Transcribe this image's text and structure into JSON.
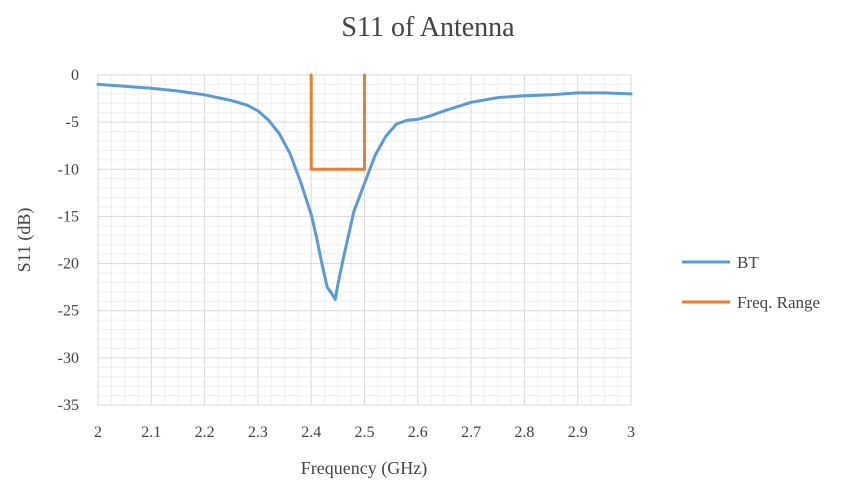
{
  "chart_data": {
    "type": "line",
    "title": "S11 of Antenna",
    "xlabel": "Frequency (GHz)",
    "ylabel": "S11 (dB)",
    "xlim": [
      2,
      3
    ],
    "ylim": [
      -35,
      0
    ],
    "x_ticks": [
      "2",
      "2.1",
      "2.2",
      "2.3",
      "2.4",
      "2.5",
      "2.6",
      "2.7",
      "2.8",
      "2.9",
      "3"
    ],
    "y_ticks": [
      "0",
      "-5",
      "-10",
      "-15",
      "-20",
      "-25",
      "-30",
      "-35"
    ],
    "x_tick_values": [
      2,
      2.1,
      2.2,
      2.3,
      2.4,
      2.5,
      2.6,
      2.7,
      2.8,
      2.9,
      3
    ],
    "y_tick_values": [
      0,
      -5,
      -10,
      -15,
      -20,
      -25,
      -30,
      -35
    ],
    "grid": true,
    "legend_position": "right",
    "series": [
      {
        "name": "BT",
        "color": "#5b9bd5",
        "x": [
          2.0,
          2.05,
          2.1,
          2.15,
          2.2,
          2.25,
          2.28,
          2.3,
          2.32,
          2.34,
          2.36,
          2.38,
          2.4,
          2.41,
          2.42,
          2.43,
          2.44,
          2.445,
          2.45,
          2.46,
          2.47,
          2.48,
          2.5,
          2.52,
          2.54,
          2.56,
          2.58,
          2.6,
          2.62,
          2.65,
          2.7,
          2.75,
          2.8,
          2.85,
          2.9,
          2.95,
          3.0
        ],
        "y": [
          -1.0,
          -1.2,
          -1.4,
          -1.7,
          -2.1,
          -2.7,
          -3.2,
          -3.8,
          -4.8,
          -6.2,
          -8.3,
          -11.3,
          -14.8,
          -17.2,
          -20.0,
          -22.5,
          -23.3,
          -23.8,
          -22.2,
          -19.5,
          -17.0,
          -14.5,
          -11.5,
          -8.5,
          -6.5,
          -5.2,
          -4.8,
          -4.7,
          -4.4,
          -3.8,
          -2.9,
          -2.4,
          -2.2,
          -2.1,
          -1.9,
          -1.9,
          -2.0
        ]
      },
      {
        "name": "Freq. Range",
        "color": "#ed7d31",
        "x": [
          2.4,
          2.4,
          2.5,
          2.5
        ],
        "y": [
          0,
          -10,
          -10,
          0
        ]
      }
    ]
  }
}
